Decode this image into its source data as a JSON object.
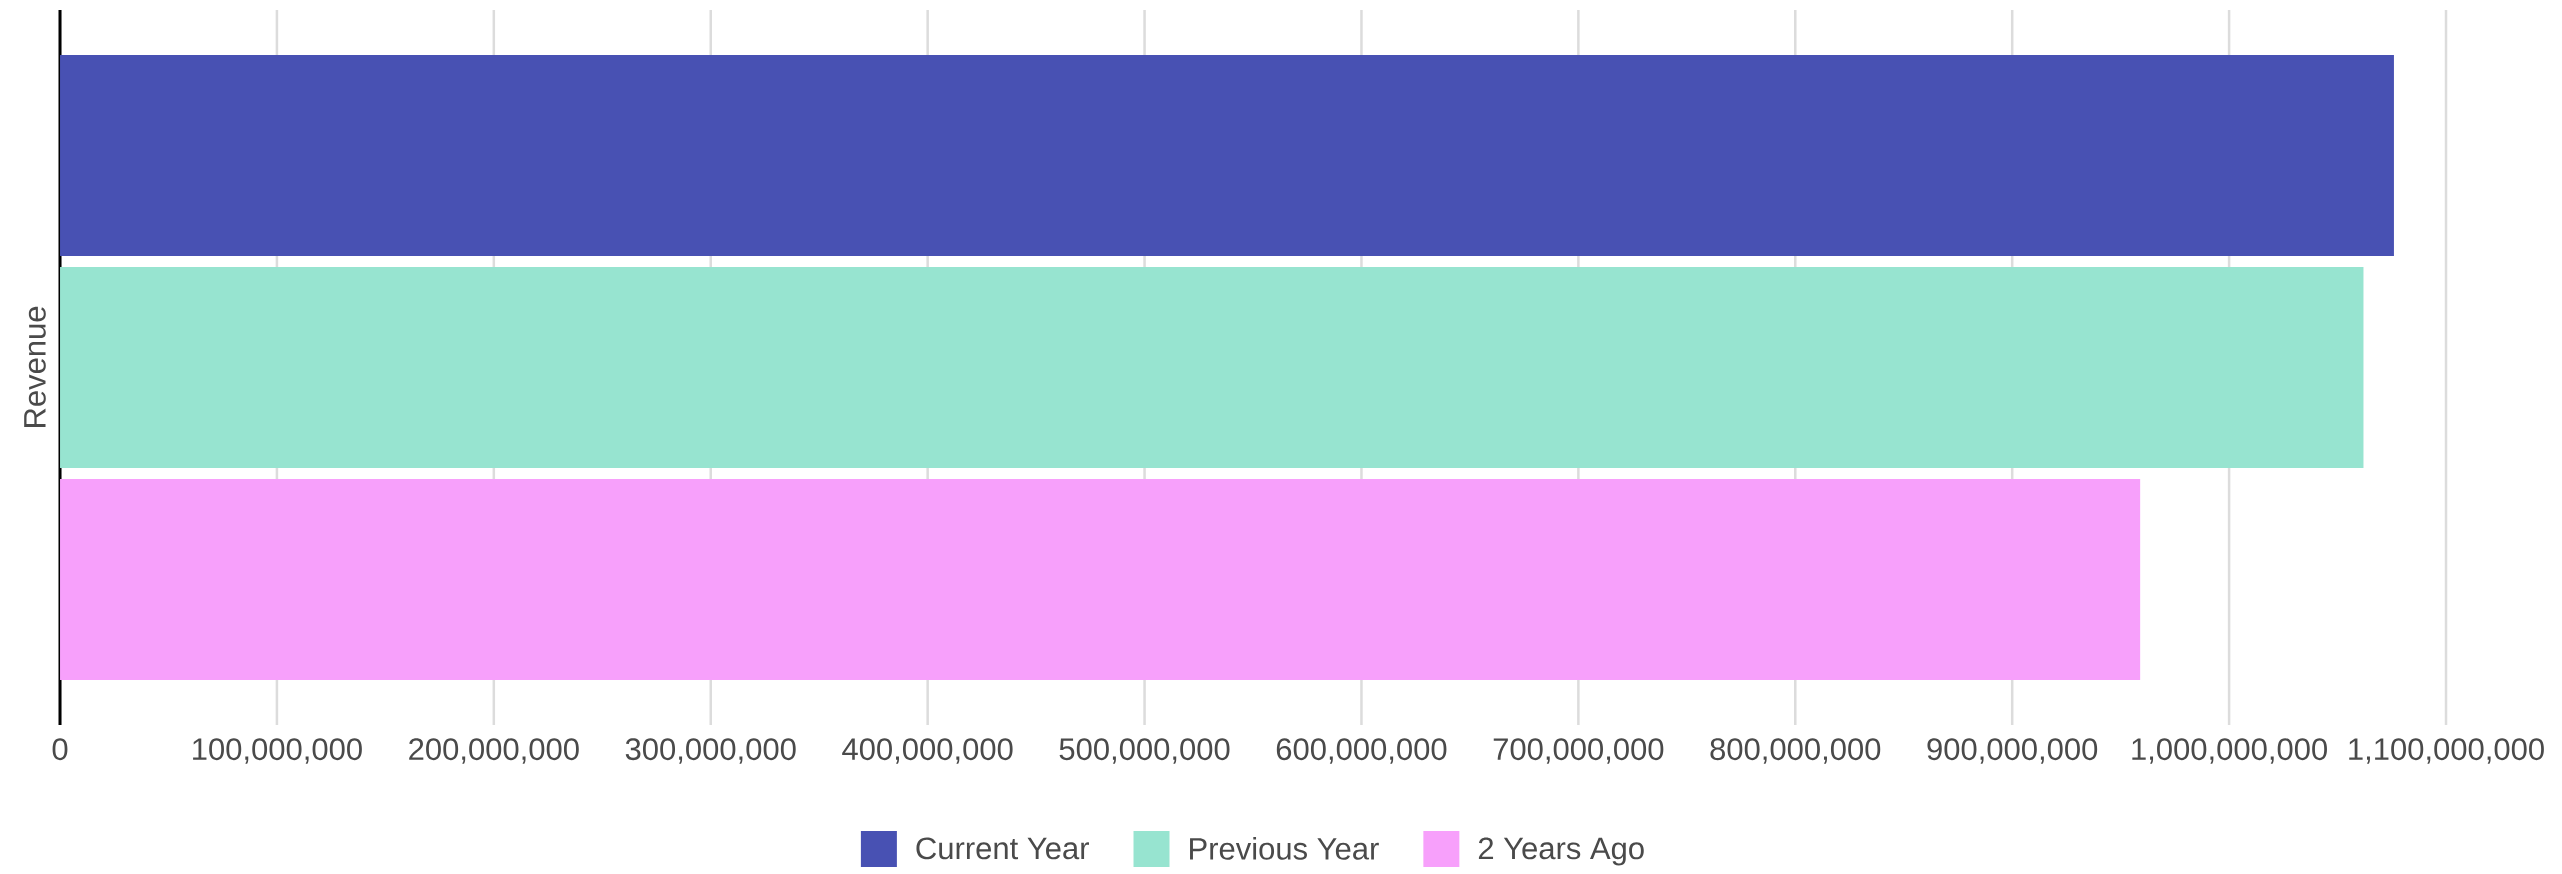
{
  "chart_data": {
    "type": "bar",
    "orientation": "horizontal",
    "ylabel": "Revenue",
    "categories": [
      null
    ],
    "series": [
      {
        "name": "Current Year",
        "color": "#4851b3",
        "values": [
          1076000000
        ]
      },
      {
        "name": "Previous Year",
        "color": "#97e4d0",
        "values": [
          1062000000
        ]
      },
      {
        "name": "2 Years Ago",
        "color": "#f7a0fb",
        "values": [
          959000000
        ]
      }
    ],
    "xlim": [
      0,
      1100000000
    ],
    "xticks": [
      0,
      {
        "value": 100000000,
        "label": "100,000,000"
      },
      {
        "value": 200000000,
        "label": "200,000,000"
      },
      {
        "value": 300000000,
        "label": "300,000,000"
      },
      {
        "value": 400000000,
        "label": "400,000,000"
      },
      {
        "value": 500000000,
        "label": "500,000,000"
      },
      {
        "value": 600000000,
        "label": "600,000,000"
      },
      {
        "value": 700000000,
        "label": "700,000,000"
      },
      {
        "value": 800000000,
        "label": "800,000,000"
      },
      {
        "value": 900000000,
        "label": "900,000,000"
      },
      {
        "value": 1000000000,
        "label": "1,000,000,000"
      },
      {
        "value": 1100000000,
        "label": "1,100,000,000"
      }
    ],
    "grid": "x",
    "legend": "bottom"
  }
}
